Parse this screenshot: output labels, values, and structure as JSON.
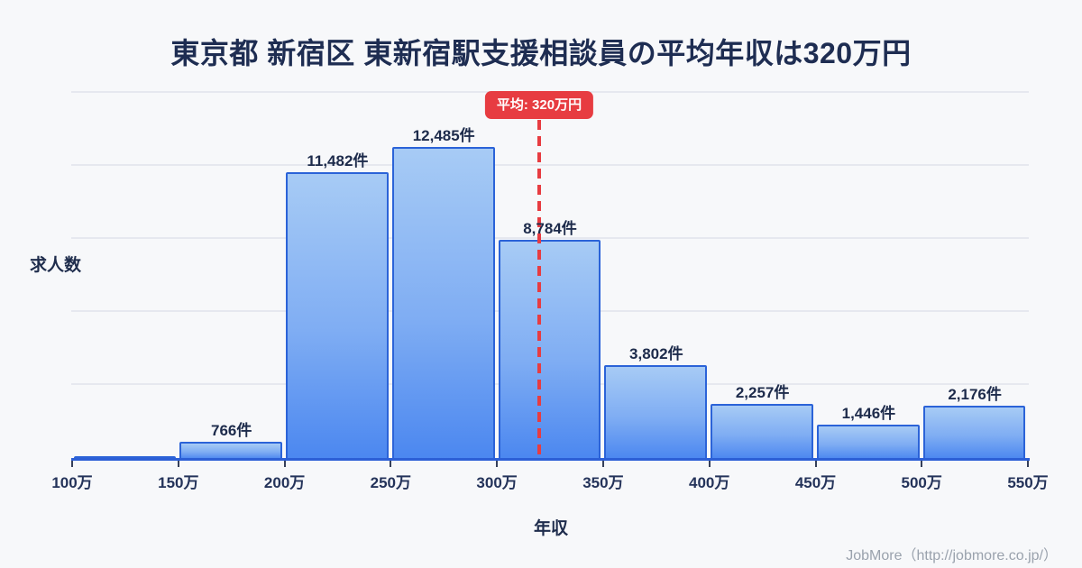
{
  "title": "東京都 新宿区 東新宿駅支援相談員の平均年収は320万円",
  "axes": {
    "y_label": "求人数",
    "x_label": "年収"
  },
  "average": {
    "badge_label": "平均: 320万円",
    "value_man_yen": 320
  },
  "footer": {
    "credit": "JobMore（http://jobmore.co.jp/）"
  },
  "chart_data": {
    "type": "bar",
    "title": "東京都 新宿区 東新宿駅支援相談員の平均年収は320万円",
    "xlabel": "年収",
    "ylabel": "求人数",
    "x_ticks": [
      "100万",
      "150万",
      "200万",
      "250万",
      "300万",
      "350万",
      "400万",
      "450万",
      "500万",
      "550万"
    ],
    "bins": [
      {
        "range": "100万-150万",
        "value": null,
        "label": ""
      },
      {
        "range": "150万-200万",
        "value": 766,
        "label": "766件"
      },
      {
        "range": "200万-250万",
        "value": 11482,
        "label": "11,482件"
      },
      {
        "range": "250万-300万",
        "value": 12485,
        "label": "12,485件"
      },
      {
        "range": "300万-350万",
        "value": 8784,
        "label": "8,784件"
      },
      {
        "range": "350万-400万",
        "value": 3802,
        "label": "3,802件"
      },
      {
        "range": "400万-450万",
        "value": 2257,
        "label": "2,257件"
      },
      {
        "range": "450万-500万",
        "value": 1446,
        "label": "1,446件"
      },
      {
        "range": "500万-550万",
        "value": 2176,
        "label": "2,176件"
      }
    ],
    "average_line": {
      "value_x": 320,
      "label": "平均: 320万円"
    },
    "ylim": [
      0,
      12485
    ],
    "grid": "horizontal",
    "legend": "none"
  },
  "colors": {
    "background": "#f7f8fa",
    "bar_fill_top": "#a7cbf5",
    "bar_fill_bottom": "#4b87f0",
    "bar_border": "#2b63d8",
    "axis_line": "#2c5fd6",
    "average_red": "#e73c41",
    "text_dark": "#1e2c4c",
    "grid_line": "#e6e8ef",
    "footer_gray": "#9aa2ad"
  }
}
